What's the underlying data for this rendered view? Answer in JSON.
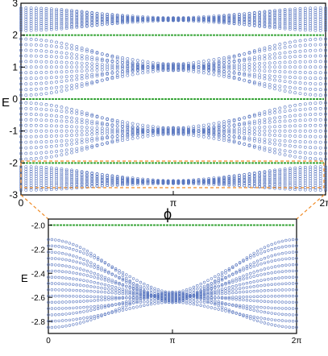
{
  "chart_data": [
    {
      "type": "scatter",
      "x_range": [
        0,
        6.2832
      ],
      "ylim": [
        -3.0,
        3.0
      ],
      "ylabel": "E",
      "xlabel": "ϕ",
      "x_tick_labels": [
        "0",
        "π",
        "2π"
      ],
      "x_tick_values": [
        0,
        3.1416,
        6.2832
      ],
      "y_tick_labels": [
        "-3",
        "-2",
        "-1",
        "0",
        "1",
        "2",
        "3"
      ],
      "y_tick_values": [
        -3,
        -2,
        -1,
        0,
        1,
        2,
        3
      ],
      "flat_bands": [
        -2.0,
        0.0,
        2.0
      ],
      "dispersive_bands": [
        {
          "e_min_at_edges": -2.85,
          "e_max_at_edges": -2.12,
          "crossing_at_pi": -2.6
        },
        {
          "e_min_at_edges": -1.88,
          "e_max_at_edges": -0.12,
          "crossing_at_pi": -1.0
        },
        {
          "e_min_at_edges": 0.12,
          "e_max_at_edges": 1.88,
          "crossing_at_pi": 1.0
        },
        {
          "e_min_at_edges": 2.15,
          "e_max_at_edges": 2.85,
          "crossing_at_pi": 2.5
        }
      ],
      "zoom_window": {
        "x": [
          0,
          6.2832
        ],
        "y": [
          -2.9,
          -1.95
        ]
      }
    },
    {
      "type": "scatter",
      "x_range": [
        0,
        6.2832
      ],
      "ylim": [
        -2.9,
        -1.95
      ],
      "ylabel": "E",
      "x_tick_labels": [
        "0",
        "π",
        "2π"
      ],
      "x_tick_values": [
        0,
        3.1416,
        6.2832
      ],
      "y_tick_labels": [
        "-2.0",
        "-2.2",
        "-2.4",
        "-2.6",
        "-2.8"
      ],
      "y_tick_values": [
        -2.0,
        -2.2,
        -2.4,
        -2.6,
        -2.8
      ],
      "flat_bands": [
        -2.0
      ],
      "dispersive_bands": [
        {
          "e_min_at_edges": -2.85,
          "e_max_at_edges": -2.12,
          "crossing_at_pi": -2.6
        }
      ]
    }
  ],
  "colors": {
    "dispersive": "#5b78c0",
    "flat": "#3aa63a",
    "zoom_box": "#f08a24",
    "axes": "#000000"
  }
}
